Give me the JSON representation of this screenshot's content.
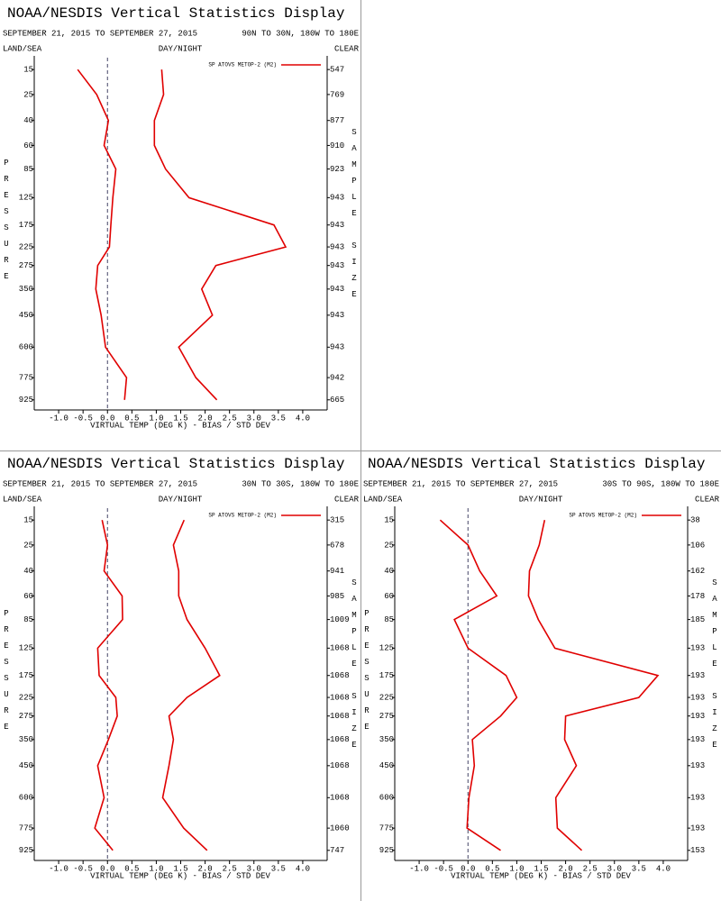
{
  "chart_data": [
    {
      "type": "line",
      "title": "NOAA/NESDIS Vertical Statistics Display",
      "date_range": "SEPTEMBER 21, 2015 TO SEPTEMBER 27, 2015",
      "region": "90N TO 30N, 180W TO 180E",
      "land_sea": "LAND/SEA",
      "day_night": "DAY/NIGHT",
      "clear": "CLEAR",
      "ylabel": "PRESSURE",
      "y2label": "SAMPLE SIZE",
      "xlabel": "VIRTUAL TEMP (DEG K) - BIAS / STD DEV",
      "y": [
        15,
        25,
        40,
        60,
        85,
        125,
        175,
        225,
        275,
        350,
        450,
        600,
        775,
        925
      ],
      "ylim": [
        11,
        1000
      ],
      "yticks": [
        15,
        25,
        40,
        60,
        85,
        125,
        175,
        225,
        275,
        350,
        450,
        600,
        775,
        925
      ],
      "sample_size": [
        547,
        769,
        877,
        910,
        923,
        943,
        943,
        943,
        943,
        943,
        943,
        943,
        942,
        665
      ],
      "xlim": [
        -1.5,
        4.5
      ],
      "xticks": [
        {
          "value": -1,
          "label": "-1.0"
        },
        -0.5,
        {
          "value": 0,
          "label": "0.0"
        },
        0.5,
        {
          "value": 1,
          "label": "1.0"
        },
        1.5,
        {
          "value": 2,
          "label": "2.0"
        },
        2.5,
        {
          "value": 3,
          "label": "3.0"
        },
        3.5,
        {
          "value": 4,
          "label": "4.0"
        }
      ],
      "series": [
        {
          "name": "SP ATOVS METOP-2 (M2)",
          "color": "#e00000",
          "values": [
            -0.61,
            -0.22,
            0.02,
            -0.07,
            0.17,
            0.11,
            0.07,
            0.04,
            -0.2,
            -0.24,
            -0.13,
            -0.04,
            0.39,
            0.35
          ]
        },
        {
          "color": "#e00000",
          "values": [
            1.11,
            1.15,
            0.96,
            0.96,
            1.19,
            1.67,
            3.41,
            3.65,
            2.22,
            1.93,
            2.15,
            1.46,
            1.81,
            2.24
          ]
        }
      ]
    },
    {
      "type": "line",
      "title": "NOAA/NESDIS Vertical Statistics Display",
      "date_range": "SEPTEMBER 21, 2015 TO SEPTEMBER 27, 2015",
      "region": "30N TO 30S, 180W TO 180E",
      "land_sea": "LAND/SEA",
      "day_night": "DAY/NIGHT",
      "clear": "CLEAR",
      "ylabel": "PRESSURE",
      "y2label": "SAMPLE SIZE",
      "xlabel": "VIRTUAL TEMP (DEG K) - BIAS / STD DEV",
      "y": [
        15,
        25,
        40,
        60,
        85,
        125,
        175,
        225,
        275,
        350,
        450,
        600,
        775,
        925
      ],
      "ylim": [
        11,
        1000
      ],
      "yticks": [
        15,
        25,
        40,
        60,
        85,
        125,
        175,
        225,
        275,
        350,
        450,
        600,
        775,
        925
      ],
      "sample_size": [
        315,
        678,
        941,
        985,
        1009,
        1068,
        1068,
        1068,
        1068,
        1068,
        1068,
        1068,
        1060,
        747
      ],
      "xlim": [
        -1.5,
        4.5
      ],
      "xticks": [
        {
          "value": -1,
          "label": "-1.0"
        },
        -0.5,
        {
          "value": 0,
          "label": "0.0"
        },
        0.5,
        {
          "value": 1,
          "label": "1.0"
        },
        1.5,
        {
          "value": 2,
          "label": "2.0"
        },
        2.5,
        {
          "value": 3,
          "label": "3.0"
        },
        3.5,
        {
          "value": 4,
          "label": "4.0"
        }
      ],
      "series": [
        {
          "name": "SP ATOVS METOP-2 (M2)",
          "color": "#e00000",
          "values": [
            -0.11,
            0,
            -0.07,
            0.3,
            0.31,
            -0.2,
            -0.17,
            0.17,
            0.2,
            0.02,
            -0.2,
            -0.07,
            -0.26,
            0.11
          ]
        },
        {
          "color": "#e00000",
          "values": [
            1.57,
            1.35,
            1.46,
            1.46,
            1.63,
            2.0,
            2.3,
            1.63,
            1.26,
            1.35,
            1.26,
            1.13,
            1.56,
            2.04
          ]
        }
      ]
    },
    {
      "type": "line",
      "title": "NOAA/NESDIS Vertical Statistics Display",
      "date_range": "SEPTEMBER 21, 2015 TO SEPTEMBER 27, 2015",
      "region": "30S TO 90S, 180W TO 180E",
      "land_sea": "LAND/SEA",
      "day_night": "DAY/NIGHT",
      "clear": "CLEAR",
      "ylabel": "PRESSURE",
      "y2label": "SAMPLE SIZE",
      "xlabel": "VIRTUAL TEMP (DEG K) - BIAS / STD DEV",
      "y": [
        15,
        25,
        40,
        60,
        85,
        125,
        175,
        225,
        275,
        350,
        450,
        600,
        775,
        925
      ],
      "ylim": [
        11,
        1000
      ],
      "yticks": [
        15,
        25,
        40,
        60,
        85,
        125,
        175,
        225,
        275,
        350,
        450,
        600,
        775,
        925
      ],
      "sample_size": [
        38,
        106,
        162,
        178,
        185,
        193,
        193,
        193,
        193,
        193,
        193,
        193,
        193,
        153
      ],
      "xlim": [
        -1.5,
        4.5
      ],
      "xticks": [
        {
          "value": -1,
          "label": "-1.0"
        },
        -0.5,
        {
          "value": 0,
          "label": "0.0"
        },
        0.5,
        {
          "value": 1,
          "label": "1.0"
        },
        1.5,
        {
          "value": 2,
          "label": "2.0"
        },
        2.5,
        {
          "value": 3,
          "label": "3.0"
        },
        3.5,
        {
          "value": 4,
          "label": "4.0"
        }
      ],
      "series": [
        {
          "name": "SP ATOVS METOP-2 (M2)",
          "color": "#e00000",
          "values": [
            -0.57,
            0,
            0.24,
            0.59,
            -0.28,
            0,
            0.78,
            1.0,
            0.67,
            0.09,
            0.13,
            0.02,
            -0.02,
            0.67
          ]
        },
        {
          "color": "#e00000",
          "values": [
            1.57,
            1.46,
            1.26,
            1.24,
            1.44,
            1.78,
            3.89,
            3.5,
            2.0,
            1.98,
            2.22,
            1.8,
            1.83,
            2.33
          ]
        }
      ]
    }
  ]
}
